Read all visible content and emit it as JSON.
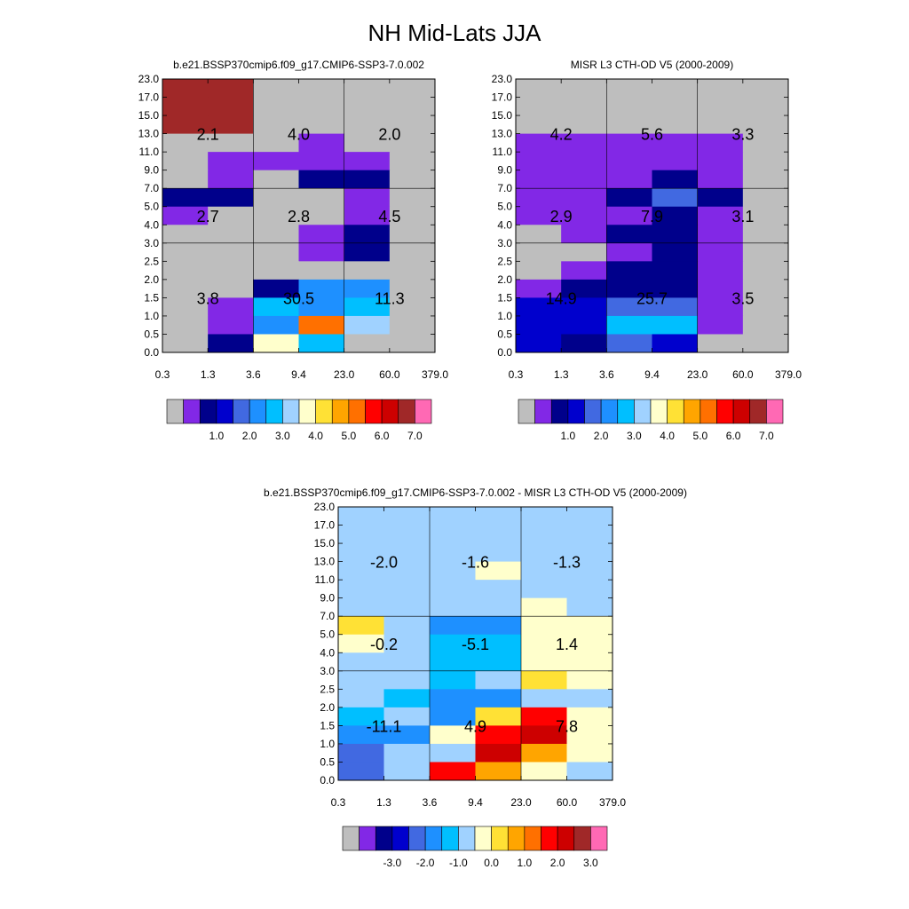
{
  "title": "NH Mid-Lats JJA",
  "colors": {
    "missing": "#bebebe",
    "frame": "#000000",
    "grid": "#000000"
  },
  "chart_data": [
    {
      "type": "heatmap",
      "title": "b.e21.BSSP370cmip6.f09_g17.CMIP6-SSP3-7.0.002",
      "x_ticks": [
        "0.3",
        "1.3",
        "3.6",
        "9.4",
        "23.0",
        "60.0",
        "379.0"
      ],
      "y_ticks": [
        "0.0",
        "0.5",
        "1.0",
        "1.5",
        "2.0",
        "2.5",
        "3.0",
        "4.0",
        "5.0",
        "7.0",
        "9.0",
        "11.0",
        "13.0",
        "15.0",
        "17.0",
        "23.0"
      ],
      "palette": [
        "#bebebe",
        "#8228e6",
        "#00008b",
        "#0000cd",
        "#4169e1",
        "#1e90ff",
        "#00bfff",
        "#a0d2ff",
        "#ffffcc",
        "#ffe135",
        "#ffa500",
        "#ff7000",
        "#ff0000",
        "#cd0000",
        "#a02828",
        "#ff69b4"
      ],
      "cbar_labels": [
        "1.0",
        "2.0",
        "3.0",
        "4.0",
        "5.0",
        "6.0",
        "7.0"
      ],
      "cbar_label_start": 2,
      "cells": [
        [
          14,
          14,
          0,
          0,
          0,
          0
        ],
        [
          14,
          14,
          0,
          0,
          0,
          0
        ],
        [
          14,
          14,
          0,
          0,
          0,
          0
        ],
        [
          0,
          0,
          0,
          1,
          0,
          0
        ],
        [
          0,
          1,
          1,
          1,
          1,
          0
        ],
        [
          0,
          1,
          0,
          2,
          2,
          0
        ],
        [
          2,
          2,
          0,
          0,
          1,
          0
        ],
        [
          1,
          0,
          0,
          0,
          1,
          0
        ],
        [
          0,
          0,
          0,
          1,
          2,
          0
        ],
        [
          0,
          0,
          0,
          1,
          2,
          0
        ],
        [
          0,
          0,
          0,
          0,
          0,
          0
        ],
        [
          0,
          0,
          2,
          5,
          5,
          0
        ],
        [
          0,
          1,
          6,
          5,
          6,
          0
        ],
        [
          0,
          1,
          5,
          11,
          7,
          0
        ],
        [
          0,
          2,
          8,
          6,
          0,
          0
        ]
      ],
      "annotations": [
        {
          "xi": 0.5,
          "yi": 3.0,
          "text": "2.1"
        },
        {
          "xi": 1.5,
          "yi": 3.0,
          "text": "4.0"
        },
        {
          "xi": 2.5,
          "yi": 3.0,
          "text": "2.0"
        },
        {
          "xi": 0.5,
          "yi": 7.5,
          "text": "2.7"
        },
        {
          "xi": 1.5,
          "yi": 7.5,
          "text": "2.8"
        },
        {
          "xi": 2.5,
          "yi": 7.5,
          "text": "4.5"
        },
        {
          "xi": 0.5,
          "yi": 12.0,
          "text": "3.8"
        },
        {
          "xi": 1.5,
          "yi": 12.0,
          "text": "30.5"
        },
        {
          "xi": 2.5,
          "yi": 12.0,
          "text": "11.3"
        }
      ]
    },
    {
      "type": "heatmap",
      "title": "MISR L3 CTH-OD V5 (2000-2009)",
      "x_ticks": [
        "0.3",
        "1.3",
        "3.6",
        "9.4",
        "23.0",
        "60.0",
        "379.0"
      ],
      "y_ticks": [
        "0.0",
        "0.5",
        "1.0",
        "1.5",
        "2.0",
        "2.5",
        "3.0",
        "4.0",
        "5.0",
        "7.0",
        "9.0",
        "11.0",
        "13.0",
        "15.0",
        "17.0",
        "23.0"
      ],
      "palette": [
        "#bebebe",
        "#8228e6",
        "#00008b",
        "#0000cd",
        "#4169e1",
        "#1e90ff",
        "#00bfff",
        "#a0d2ff",
        "#ffffcc",
        "#ffe135",
        "#ffa500",
        "#ff7000",
        "#ff0000",
        "#cd0000",
        "#a02828",
        "#ff69b4"
      ],
      "cbar_labels": [
        "1.0",
        "2.0",
        "3.0",
        "4.0",
        "5.0",
        "6.0",
        "7.0"
      ],
      "cbar_label_start": 2,
      "cells": [
        [
          0,
          0,
          0,
          0,
          0,
          0
        ],
        [
          0,
          0,
          0,
          0,
          0,
          0
        ],
        [
          0,
          0,
          0,
          0,
          0,
          0
        ],
        [
          1,
          1,
          1,
          1,
          1,
          0
        ],
        [
          1,
          1,
          1,
          1,
          1,
          0
        ],
        [
          1,
          1,
          1,
          2,
          1,
          0
        ],
        [
          1,
          1,
          2,
          4,
          2,
          0
        ],
        [
          1,
          1,
          1,
          2,
          1,
          0
        ],
        [
          0,
          1,
          2,
          2,
          1,
          0
        ],
        [
          0,
          0,
          1,
          2,
          1,
          0
        ],
        [
          0,
          1,
          2,
          2,
          1,
          0
        ],
        [
          1,
          2,
          2,
          2,
          1,
          0
        ],
        [
          3,
          3,
          4,
          4,
          1,
          0
        ],
        [
          3,
          3,
          6,
          6,
          1,
          0
        ],
        [
          3,
          2,
          4,
          3,
          0,
          0
        ]
      ],
      "annotations": [
        {
          "xi": 0.5,
          "yi": 3.0,
          "text": "4.2"
        },
        {
          "xi": 1.5,
          "yi": 3.0,
          "text": "5.6"
        },
        {
          "xi": 2.5,
          "yi": 3.0,
          "text": "3.3"
        },
        {
          "xi": 0.5,
          "yi": 7.5,
          "text": "2.9"
        },
        {
          "xi": 1.5,
          "yi": 7.5,
          "text": "7.9"
        },
        {
          "xi": 2.5,
          "yi": 7.5,
          "text": "3.1"
        },
        {
          "xi": 0.5,
          "yi": 12.0,
          "text": "14.9"
        },
        {
          "xi": 1.5,
          "yi": 12.0,
          "text": "25.7"
        },
        {
          "xi": 2.5,
          "yi": 12.0,
          "text": "3.5"
        }
      ]
    },
    {
      "type": "heatmap",
      "title": "b.e21.BSSP370cmip6.f09_g17.CMIP6-SSP3-7.0.002 - MISR L3 CTH-OD V5 (2000-2009)",
      "x_ticks": [
        "0.3",
        "1.3",
        "3.6",
        "9.4",
        "23.0",
        "60.0",
        "379.0"
      ],
      "y_ticks": [
        "0.0",
        "0.5",
        "1.0",
        "1.5",
        "2.0",
        "2.5",
        "3.0",
        "4.0",
        "5.0",
        "7.0",
        "9.0",
        "11.0",
        "13.0",
        "15.0",
        "17.0",
        "23.0"
      ],
      "palette": [
        "#bebebe",
        "#8228e6",
        "#00008b",
        "#0000cd",
        "#4169e1",
        "#1e90ff",
        "#00bfff",
        "#a0d2ff",
        "#ffffcc",
        "#ffe135",
        "#ffa500",
        "#ff7000",
        "#ff0000",
        "#cd0000",
        "#a02828",
        "#ff69b4"
      ],
      "cbar_labels": [
        "-3.0",
        "-2.0",
        "-1.0",
        "0.0",
        "1.0",
        "2.0",
        "3.0"
      ],
      "cbar_label_start": 2,
      "cells": [
        [
          7,
          7,
          7,
          7,
          7,
          7
        ],
        [
          7,
          7,
          7,
          7,
          7,
          7
        ],
        [
          7,
          7,
          7,
          7,
          7,
          7
        ],
        [
          7,
          7,
          7,
          8,
          7,
          7
        ],
        [
          7,
          7,
          7,
          7,
          7,
          7
        ],
        [
          7,
          7,
          7,
          7,
          8,
          7
        ],
        [
          9,
          7,
          5,
          5,
          8,
          8
        ],
        [
          8,
          7,
          6,
          6,
          8,
          8
        ],
        [
          7,
          7,
          6,
          6,
          8,
          8
        ],
        [
          7,
          7,
          6,
          7,
          9,
          8
        ],
        [
          7,
          6,
          5,
          5,
          7,
          7
        ],
        [
          6,
          7,
          5,
          9,
          12,
          8
        ],
        [
          5,
          5,
          8,
          12,
          13,
          8
        ],
        [
          4,
          7,
          7,
          13,
          10,
          8
        ],
        [
          4,
          7,
          12,
          10,
          8,
          7
        ]
      ],
      "annotations": [
        {
          "xi": 0.5,
          "yi": 3.0,
          "text": "-2.0"
        },
        {
          "xi": 1.5,
          "yi": 3.0,
          "text": "-1.6"
        },
        {
          "xi": 2.5,
          "yi": 3.0,
          "text": "-1.3"
        },
        {
          "xi": 0.5,
          "yi": 7.5,
          "text": "-0.2"
        },
        {
          "xi": 1.5,
          "yi": 7.5,
          "text": "-5.1"
        },
        {
          "xi": 2.5,
          "yi": 7.5,
          "text": "1.4"
        },
        {
          "xi": 0.5,
          "yi": 12.0,
          "text": "-11.1"
        },
        {
          "xi": 1.5,
          "yi": 12.0,
          "text": "4.9"
        },
        {
          "xi": 2.5,
          "yi": 12.0,
          "text": "7.8"
        }
      ]
    }
  ]
}
